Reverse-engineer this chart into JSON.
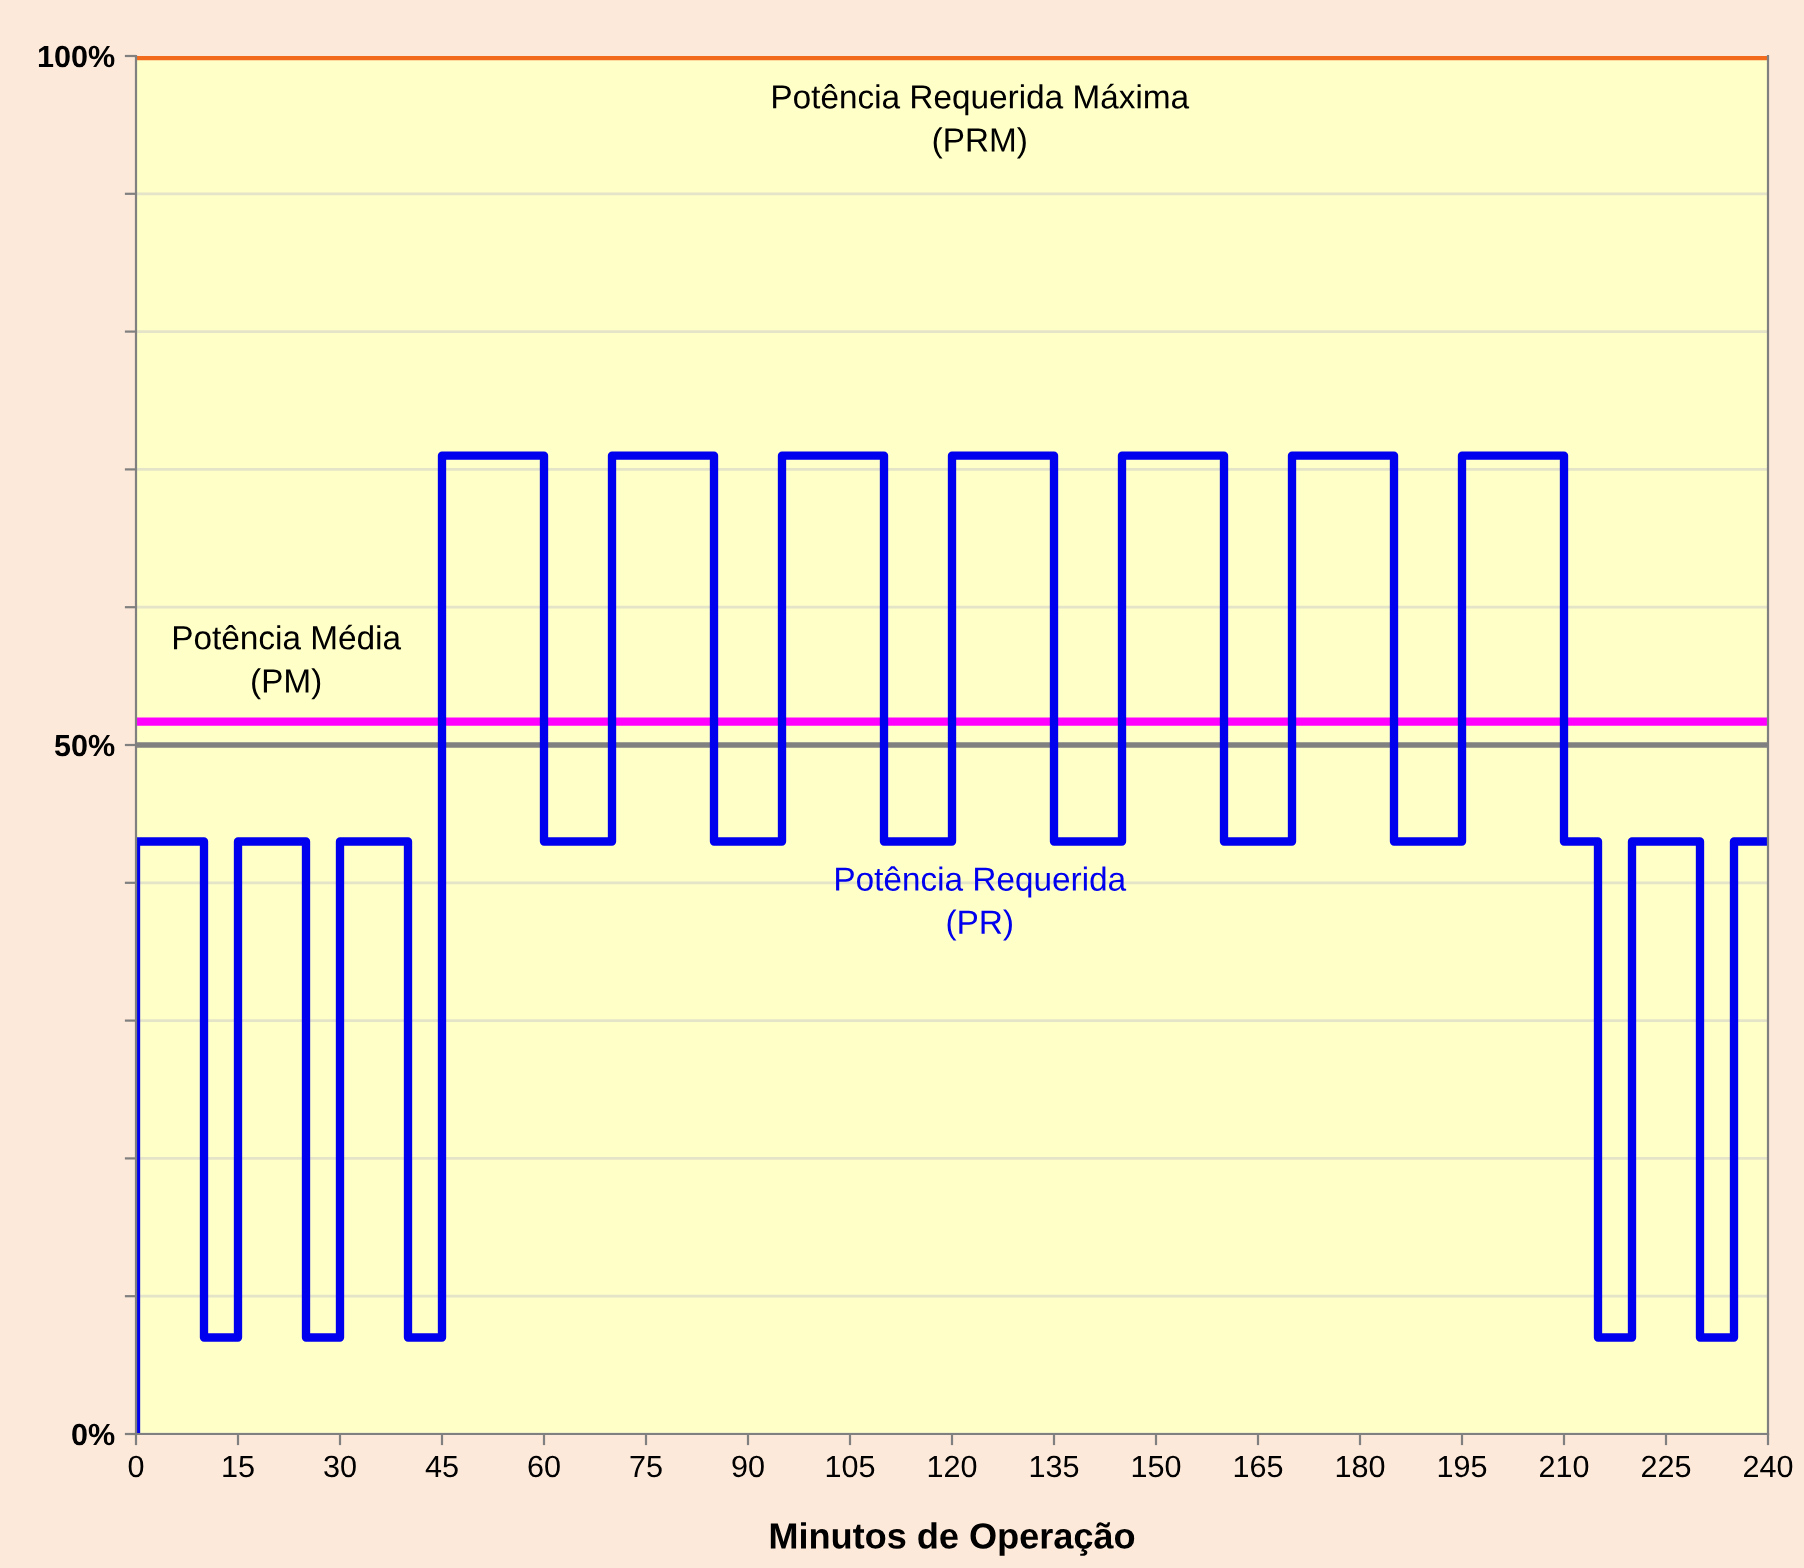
{
  "chart_data": {
    "type": "step",
    "xlabel": "Minutos de Operação",
    "x": [
      0,
      0,
      10,
      15,
      25,
      30,
      40,
      45,
      60,
      70,
      85,
      95,
      110,
      120,
      135,
      145,
      160,
      170,
      185,
      195,
      210,
      215,
      220,
      230,
      235,
      240
    ],
    "series": [
      {
        "name": "Potência Requerida\n(PR)",
        "color": "#0000ee",
        "values": [
          0,
          43,
          7,
          43,
          7,
          43,
          7,
          71,
          43,
          71,
          43,
          71,
          43,
          71,
          43,
          71,
          43,
          71,
          43,
          71,
          43,
          7,
          43,
          7,
          43,
          43
        ]
      }
    ],
    "xlim": [
      0,
      240
    ],
    "xticks": [
      0,
      15,
      30,
      45,
      60,
      75,
      90,
      105,
      120,
      135,
      150,
      165,
      180,
      195,
      210,
      225,
      240
    ],
    "ylim": [
      0,
      100
    ],
    "yticks": [
      {
        "value": 0,
        "label": "0%"
      },
      {
        "value": 10,
        "label": null
      },
      {
        "value": 20,
        "label": null
      },
      {
        "value": 30,
        "label": null
      },
      {
        "value": 40,
        "label": null
      },
      {
        "value": 50,
        "label": "50%"
      },
      {
        "value": 60,
        "label": null
      },
      {
        "value": 70,
        "label": null
      },
      {
        "value": 80,
        "label": null
      },
      {
        "value": 90,
        "label": null
      },
      {
        "value": 100,
        "label": "100%"
      }
    ],
    "grid": "y",
    "ref_lines": [
      {
        "axis": "y",
        "value": 50,
        "color": "#808080"
      },
      {
        "axis": "y",
        "value": 100,
        "color": "#f26b1d",
        "label": "Potência Requerida Máxima\n(PRM)"
      },
      {
        "axis": "y",
        "value": 51.7,
        "color": "#ff00ff",
        "label": "Potência Média\n(PM)"
      }
    ]
  }
}
